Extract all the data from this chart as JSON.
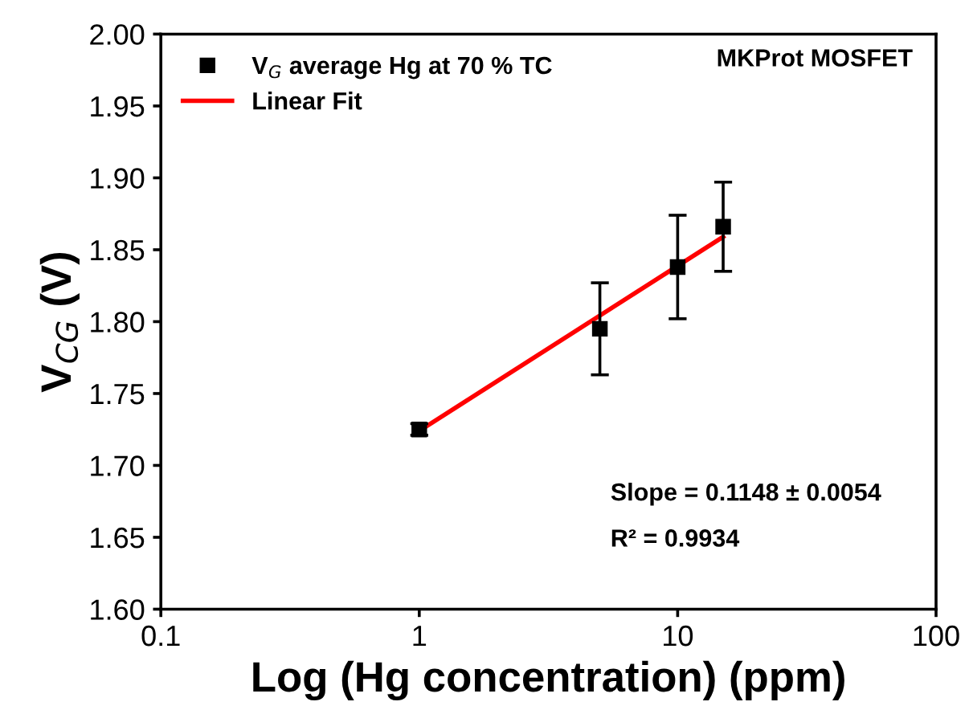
{
  "chart_data": {
    "type": "scatter",
    "xlabel": "Log (Hg concentration) (ppm)",
    "ylabel": "V$_{CG}$ (V)",
    "log": "x",
    "xlim": [
      0.1,
      100
    ],
    "xticks": [
      0.1,
      1,
      10,
      100
    ],
    "ylim": [
      1.6,
      2.0
    ],
    "yticks": [
      {
        "value": 1.6,
        "label": "1.60"
      },
      {
        "value": 1.65,
        "label": "1.65"
      },
      {
        "value": 1.7,
        "label": "1.70"
      },
      {
        "value": 1.75,
        "label": "1.75"
      },
      {
        "value": 1.8,
        "label": "1.80"
      },
      {
        "value": 1.85,
        "label": "1.85"
      },
      {
        "value": 1.9,
        "label": "1.90"
      },
      {
        "value": 1.95,
        "label": "1.95"
      },
      {
        "value": 2.0,
        "label": "2.00"
      }
    ],
    "grid": false,
    "legend": "top left",
    "series": [
      {
        "name": "V$_{G}$ average Hg at 70 % TC",
        "marker": "square",
        "color": "#000000",
        "x": [
          1,
          5,
          10,
          15
        ],
        "values": [
          1.725,
          1.795,
          1.838,
          1.866
        ],
        "errors": [
          0.004,
          0.032,
          0.036,
          0.031
        ]
      },
      {
        "name": "Linear Fit",
        "type": "line",
        "color": "#ff0000",
        "x": [
          1,
          15
        ],
        "values": [
          1.724,
          1.859
        ],
        "marker": "none",
        "line_style": "solid"
      }
    ],
    "annotations": [
      "MKProt MOSFET",
      "Slope = 0.1148 ± 0.0054",
      "R² = 0.9934"
    ]
  }
}
